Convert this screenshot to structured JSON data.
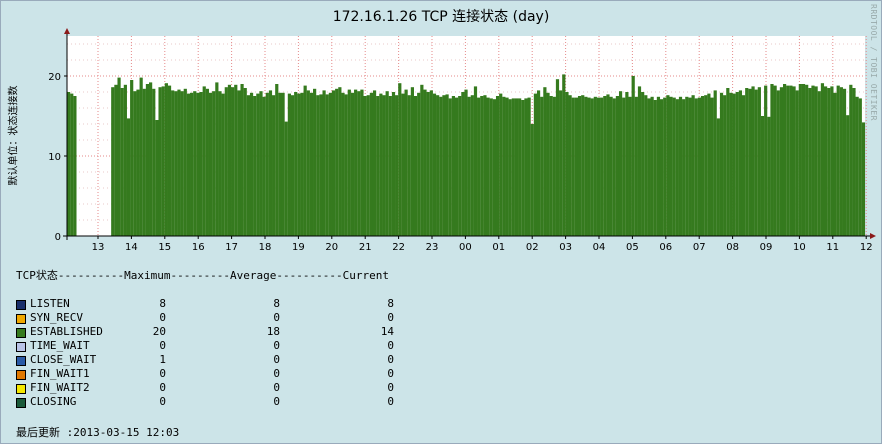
{
  "chart_data": {
    "type": "bar",
    "title": "172.16.1.26 TCP 连接状态 (day)",
    "ylabel": "默认单位：状态连接数",
    "watermark": "RRDTOOL / TOBI OETIKER",
    "ylim": [
      0,
      25
    ],
    "yticks": [
      0,
      10,
      20
    ],
    "xticks": [
      "13",
      "14",
      "15",
      "16",
      "17",
      "18",
      "19",
      "20",
      "21",
      "22",
      "23",
      "00",
      "01",
      "02",
      "03",
      "04",
      "05",
      "06",
      "07",
      "08",
      "09",
      "10",
      "11",
      "12"
    ],
    "series": [
      {
        "name": "ESTABLISHED",
        "color": "#357a1e",
        "values": [
          18,
          17.8,
          17.5,
          0,
          0,
          0,
          0,
          0,
          0,
          0,
          0,
          0,
          0,
          0,
          18.6,
          18.9,
          19.8,
          18.5,
          18.9,
          14.7,
          19.5,
          18.1,
          18.3,
          19.8,
          18.4,
          19.0,
          19.2,
          18.4,
          14.5,
          18.6,
          18.7,
          19.1,
          18.8,
          18.2,
          18.1,
          18.3,
          18.1,
          18.4,
          17.8,
          17.9,
          18.1,
          17.9,
          18.0,
          18.7,
          18.4,
          17.9,
          18.1,
          19.2,
          18.1,
          17.8,
          18.6,
          18.9,
          18.6,
          18.9,
          18.2,
          19.0,
          18.5,
          17.6,
          17.9,
          17.5,
          17.8,
          18.1,
          17.4,
          17.9,
          18.2,
          17.6,
          19.0,
          17.9,
          17.9,
          14.3,
          17.8,
          17.6,
          18.0,
          17.8,
          17.9,
          18.8,
          18.2,
          17.9,
          18.4,
          17.6,
          17.7,
          18.2,
          17.7,
          17.9,
          18.2,
          18.4,
          18.6,
          17.9,
          17.7,
          18.3,
          17.9,
          18.3,
          18.1,
          18.3,
          17.5,
          17.6,
          17.9,
          18.2,
          17.5,
          17.8,
          17.6,
          18.1,
          17.5,
          18.0,
          17.6,
          19.1,
          17.8,
          18.3,
          17.6,
          18.6,
          17.5,
          17.9,
          18.9,
          18.3,
          18.0,
          18.2,
          17.8,
          17.6,
          17.4,
          17.6,
          17.7,
          17.2,
          17.5,
          17.3,
          17.5,
          18.0,
          18.3,
          17.4,
          17.6,
          18.7,
          17.3,
          17.5,
          17.6,
          17.3,
          17.2,
          17.1,
          17.5,
          17.8,
          17.4,
          17.3,
          17.1,
          17.2,
          17.2,
          17.2,
          17.0,
          17.2,
          17.3,
          14.0,
          17.8,
          18.2,
          17.4,
          18.6,
          17.9,
          17.5,
          17.4,
          19.6,
          18.2,
          20.2,
          18.0,
          17.6,
          17.3,
          17.3,
          17.5,
          17.6,
          17.4,
          17.3,
          17.2,
          17.4,
          17.3,
          17.3,
          17.5,
          17.7,
          17.4,
          17.2,
          17.5,
          18.1,
          17.3,
          18.0,
          17.4,
          20.0,
          17.4,
          18.7,
          18.0,
          17.6,
          17.2,
          17.4,
          17.0,
          17.4,
          17.1,
          17.3,
          17.6,
          17.4,
          17.3,
          17.1,
          17.4,
          17.1,
          17.4,
          17.3,
          17.6,
          17.2,
          17.3,
          17.5,
          17.6,
          17.8,
          17.3,
          18.2,
          14.7,
          17.9,
          17.6,
          18.5,
          17.9,
          17.8,
          18.0,
          18.2,
          17.6,
          18.5,
          18.4,
          18.7,
          18.3,
          18.6,
          15.0,
          18.8,
          14.9,
          19.0,
          18.8,
          18.2,
          18.6,
          19.0,
          18.8,
          18.8,
          18.7,
          18.2,
          19.0,
          19.0,
          18.9,
          18.5,
          18.8,
          18.7,
          18.1,
          19.1,
          18.7,
          18.5,
          18.7,
          17.9,
          18.8,
          18.6,
          18.4,
          15.1,
          18.9,
          18.5,
          17.4,
          17.2,
          14.2
        ]
      }
    ],
    "legend": {
      "header": "TCP状态----------Maximum---------Average----------Current",
      "rows": [
        {
          "name": "LISTEN",
          "color": "#1a2f6b",
          "max": "8",
          "avg": "8",
          "cur": "8"
        },
        {
          "name": "SYN_RECV",
          "color": "#f0a800",
          "max": "0",
          "avg": "0",
          "cur": "0"
        },
        {
          "name": "ESTABLISHED",
          "color": "#357a1e",
          "max": "20",
          "avg": "18",
          "cur": "14"
        },
        {
          "name": "TIME_WAIT",
          "color": "#b9c4e8",
          "max": "0",
          "avg": "0",
          "cur": "0"
        },
        {
          "name": "CLOSE_WAIT",
          "color": "#2a5aa6",
          "max": "1",
          "avg": "0",
          "cur": "0"
        },
        {
          "name": "FIN_WAIT1",
          "color": "#e07800",
          "max": "0",
          "avg": "0",
          "cur": "0"
        },
        {
          "name": "FIN_WAIT2",
          "color": "#f5e800",
          "max": "0",
          "avg": "0",
          "cur": "0"
        },
        {
          "name": "CLOSING",
          "color": "#1a5a3a",
          "max": "0",
          "avg": "0",
          "cur": "0"
        }
      ]
    },
    "last_update": "最后更新 :2013-03-15 12:03"
  }
}
